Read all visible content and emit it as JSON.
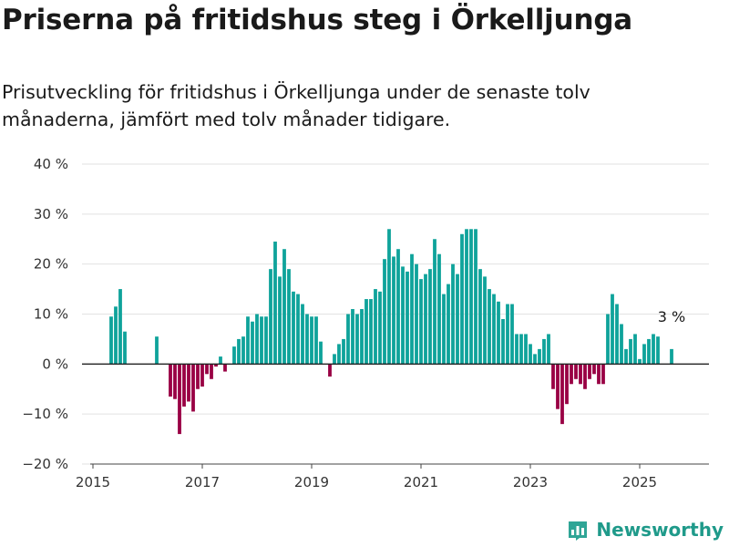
{
  "chart_data": {
    "type": "bar",
    "title": "Priserna på fritidshus steg i Örkelljunga",
    "subtitle": "Prisutveckling för fritidshus i Örkelljunga under de senaste tolv månaderna, jämfört med tolv månader tidigare.",
    "xlabel": "",
    "ylabel": "",
    "ylim": [
      -20,
      40
    ],
    "y_ticks": [
      -20,
      -10,
      0,
      10,
      20,
      30,
      40
    ],
    "y_tick_labels": [
      "−20 %",
      "−10 %",
      "0 %",
      "10 %",
      "20 %",
      "30 %",
      "40 %"
    ],
    "x_ticks": [
      "2015",
      "2017",
      "2019",
      "2021",
      "2023",
      "2025"
    ],
    "x_start": "2015-01",
    "grid": true,
    "colors": {
      "positive": "#0fa39b",
      "negative": "#990044",
      "grid": "#e2e2e2",
      "zero_line": "#222222"
    },
    "annotation": {
      "text": "3 %",
      "month": "2025-08",
      "value": 3
    },
    "months": [
      "2015-05",
      "2015-06",
      "2015-07",
      "2015-08",
      "2015-09",
      "2016-03",
      "2016-06",
      "2016-07",
      "2016-08",
      "2016-09",
      "2016-10",
      "2016-11",
      "2016-12",
      "2017-01",
      "2017-02",
      "2017-03",
      "2017-04",
      "2017-05",
      "2017-06",
      "2017-07",
      "2017-08",
      "2017-09",
      "2017-10",
      "2017-11",
      "2017-12",
      "2018-01",
      "2018-02",
      "2018-03",
      "2018-04",
      "2018-05",
      "2018-06",
      "2018-07",
      "2018-08",
      "2018-09",
      "2018-10",
      "2018-11",
      "2018-12",
      "2019-01",
      "2019-02",
      "2019-03",
      "2019-05",
      "2019-06",
      "2019-07",
      "2019-08",
      "2019-09",
      "2019-10",
      "2019-11",
      "2019-12",
      "2020-01",
      "2020-02",
      "2020-03",
      "2020-04",
      "2020-05",
      "2020-06",
      "2020-07",
      "2020-08",
      "2020-09",
      "2020-10",
      "2020-11",
      "2020-12",
      "2021-01",
      "2021-02",
      "2021-03",
      "2021-04",
      "2021-05",
      "2021-06",
      "2021-07",
      "2021-08",
      "2021-09",
      "2021-10",
      "2021-11",
      "2021-12",
      "2022-01",
      "2022-02",
      "2022-03",
      "2022-04",
      "2022-05",
      "2022-06",
      "2022-07",
      "2022-08",
      "2022-09",
      "2022-10",
      "2022-11",
      "2022-12",
      "2023-01",
      "2023-02",
      "2023-03",
      "2023-04",
      "2023-05",
      "2023-06",
      "2023-07",
      "2023-08",
      "2023-09",
      "2023-10",
      "2023-11",
      "2023-12",
      "2024-01",
      "2024-02",
      "2024-03",
      "2024-04",
      "2024-05",
      "2024-06",
      "2024-07",
      "2024-08",
      "2024-09",
      "2024-10",
      "2024-11",
      "2024-12",
      "2025-01",
      "2025-02",
      "2025-03",
      "2025-04",
      "2025-05",
      "2025-06",
      "2025-08"
    ],
    "values": [
      9.5,
      11.5,
      15,
      6.5,
      0,
      5.5,
      -6.5,
      -7,
      -14,
      -8.5,
      -7.5,
      -9.5,
      -5,
      -4.5,
      -2,
      -3,
      -0.5,
      1.5,
      -1.5,
      0,
      3.5,
      5,
      5.5,
      9.5,
      8.5,
      10,
      9.5,
      9.5,
      19,
      24.5,
      17.5,
      23,
      19,
      14.5,
      14,
      12,
      10,
      9.5,
      9.5,
      4.5,
      -2.5,
      2,
      4,
      5,
      10,
      11,
      10,
      11,
      13,
      13,
      15,
      14.5,
      21,
      27,
      21.5,
      23,
      19.5,
      18.5,
      22,
      20,
      17,
      18,
      19,
      25,
      22,
      14,
      16,
      20,
      18,
      26,
      27,
      27,
      27,
      19,
      17.5,
      15,
      14,
      12.5,
      9,
      12,
      12,
      6,
      6,
      6,
      4,
      2,
      3,
      5,
      6,
      -5,
      -9,
      -12,
      -8,
      -4,
      -3,
      -4,
      -5,
      -3,
      -2,
      -4,
      -4,
      10,
      14,
      12,
      8,
      3,
      5,
      6,
      1,
      4,
      5,
      6,
      5.5,
      0,
      3
    ]
  },
  "brand": {
    "name": "Newsworthy",
    "icon": "newsworthy-logo-icon"
  }
}
